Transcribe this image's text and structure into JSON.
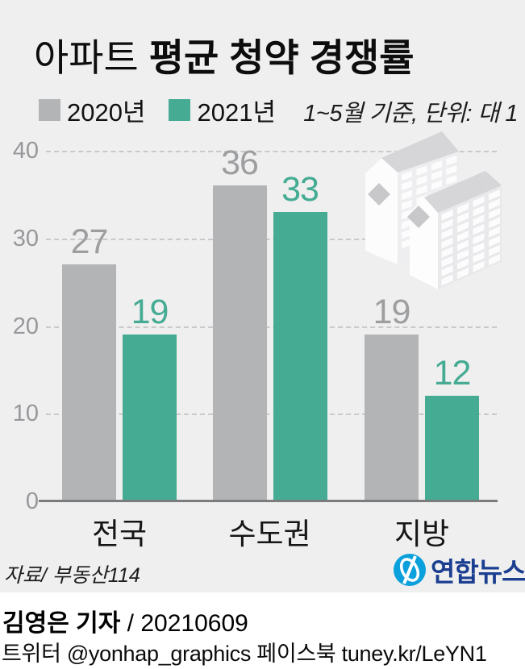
{
  "title": {
    "light": "아파트",
    "bold": "평균 청약 경쟁률"
  },
  "note": "1~5월 기준, 단위: 대 1",
  "chart_data": {
    "type": "bar",
    "title": "아파트 평균 청약 경쟁률",
    "subtitle_note": "1~5월 기준, 단위: 대 1",
    "categories": [
      "전국",
      "수도권",
      "지방"
    ],
    "series": [
      {
        "name": "2020년",
        "color": "#b3b4b6",
        "values": [
          27,
          36,
          19
        ]
      },
      {
        "name": "2021년",
        "color": "#46ab93",
        "values": [
          19,
          33,
          12
        ]
      }
    ],
    "ylim": [
      0,
      40
    ],
    "yticks": [
      0,
      10,
      20,
      30,
      40
    ],
    "grid": "horizontal-dashed",
    "legend_position": "top-left",
    "value_labels": "above-bars"
  },
  "source": "자료/ 부동산114",
  "logo": {
    "name": "연합뉴스"
  },
  "footer": {
    "byline": "김영은 기자",
    "date": " / 20210609",
    "social": "트위터 @yonhap_graphics  페이스북 tuney.kr/LeYN1"
  },
  "colors": {
    "background": "#efefef",
    "footer_background": "#ffffff",
    "bar_2020": "#b3b4b6",
    "bar_2021": "#46ab93",
    "grid": "#c9c9cb",
    "axis_line": "#7b7c7e",
    "tick_text": "#97989b",
    "value_2020": "#9d9ea0",
    "value_2021": "#45ab93",
    "logo_blue": "#0aa0dc",
    "logo_navy": "#1b3e91"
  }
}
